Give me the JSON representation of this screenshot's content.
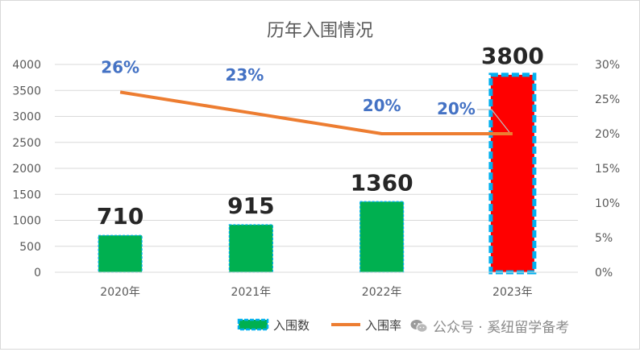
{
  "chart_data": {
    "type": "bar",
    "title": "历年入围情况",
    "categories": [
      "2020年",
      "2021年",
      "2022年",
      "2023年"
    ],
    "series": [
      {
        "name": "入围数",
        "type": "bar",
        "axis": "left",
        "values": [
          710,
          915,
          1360,
          3800
        ],
        "labels": [
          "710",
          "915",
          "1360",
          "3800"
        ]
      },
      {
        "name": "入围率",
        "type": "line",
        "axis": "right",
        "values": [
          26,
          23,
          20,
          20
        ],
        "labels": [
          "26%",
          "23%",
          "20%",
          "20%"
        ]
      }
    ],
    "y_left": {
      "min": 0,
      "max": 4000,
      "ticks": [
        "0",
        "500",
        "1000",
        "1500",
        "2000",
        "2500",
        "3000",
        "3500",
        "4000"
      ]
    },
    "y_right": {
      "min": 0,
      "max": 30,
      "ticks": [
        "0%",
        "5%",
        "10%",
        "15%",
        "20%",
        "25%",
        "30%"
      ]
    },
    "grid": true,
    "legend_position": "bottom",
    "colors": {
      "bar": "#00b050",
      "bar_highlight": "#ff0000",
      "bar_border": "#00b0f0",
      "line": "#ed7d31",
      "rate_label": "#4472c4",
      "value_label": "#262626"
    },
    "highlight_index": 3
  },
  "watermark": {
    "text": "公众号 · 奚纽留学备考",
    "icon": "wechat-icon"
  }
}
